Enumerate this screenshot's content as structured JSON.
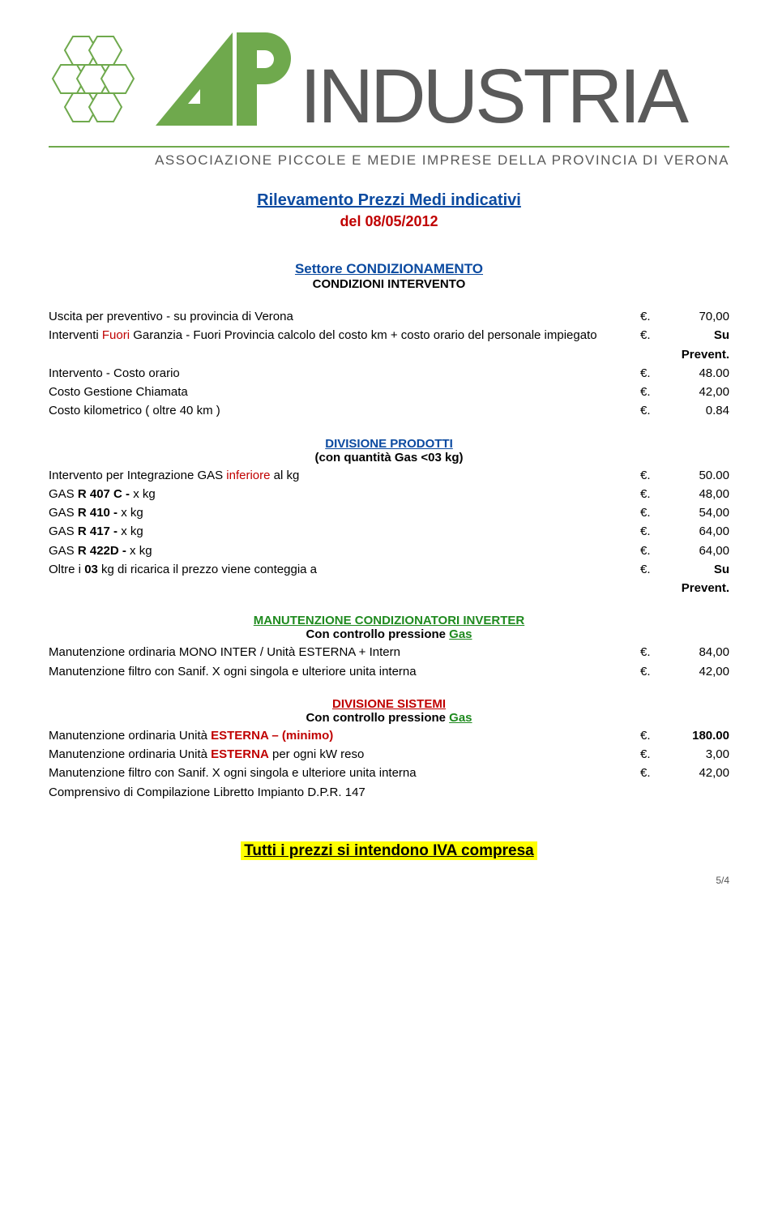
{
  "logo": {
    "industria_text": "INDUSTRIA",
    "subtitle": "ASSOCIAZIONE PICCOLE E MEDIE IMPRESE DELLA PROVINCIA DI VERONA",
    "green": "#6fa94d",
    "green_light": "#9fc87f",
    "gray": "#5a5a5a"
  },
  "title": {
    "line1": "Rilevamento Prezzi Medi indicativi",
    "line2": "del 08/05/2012"
  },
  "sector": {
    "main": "Settore CONDIZIONAMENTO",
    "sub": "CONDIZIONI INTERVENTO"
  },
  "condizioni": [
    {
      "label": "Uscita per preventivo  -  su provincia di Verona",
      "currency": "€.",
      "value": "70,00"
    },
    {
      "label_parts": [
        "Interventi ",
        {
          "text": "Fuori",
          "color": "#c00000"
        },
        " Garanzia - Fuori Provincia calcolo del costo km + costo orario del personale impiegato"
      ],
      "currency": "€.",
      "value": "Su Prevent.",
      "value_bold": true
    },
    {
      "label": "Intervento - Costo orario",
      "currency": "€.",
      "value": "48.00"
    },
    {
      "label": "Costo Gestione Chiamata",
      "currency": "€.",
      "value": "42,00"
    },
    {
      "label": "Costo kilometrico ( oltre 40 km )",
      "currency": "€.",
      "value": "0.84"
    }
  ],
  "divisione_prodotti": {
    "heading": "DIVISIONE PRODOTTI",
    "sub": "(con quantità Gas <03 kg)",
    "rows": [
      {
        "label_parts": [
          "Intervento per Integrazione GAS ",
          {
            "text": "inferiore",
            "color": "#c00000"
          },
          " al kg"
        ],
        "currency": "€.",
        "value": "50.00"
      },
      {
        "label_parts": [
          "GAS  ",
          {
            "text": "R 407 C  -",
            "bold": true
          },
          " x kg"
        ],
        "currency": "€.",
        "value": "48,00"
      },
      {
        "label_parts": [
          "GAS  ",
          {
            "text": "R 410  -",
            "bold": true
          },
          " x kg"
        ],
        "currency": "€.",
        "value": "54,00"
      },
      {
        "label_parts": [
          "GAS  ",
          {
            "text": "R 417  -",
            "bold": true
          },
          " x kg"
        ],
        "currency": "€.",
        "value": "64,00"
      },
      {
        "label_parts": [
          "GAS  ",
          {
            "text": "R 422D  -",
            "bold": true
          },
          " x kg"
        ],
        "currency": "€.",
        "value": "64,00"
      },
      {
        "label_parts": [
          "Oltre i ",
          {
            "text": "03",
            "bold": true
          },
          " kg di ricarica il prezzo viene conteggia a"
        ],
        "currency": "€.",
        "value": "Su Prevent.",
        "value_bold": true
      }
    ]
  },
  "manutenzione_inverter": {
    "heading": "MANUTENZIONE CONDIZIONATORI INVERTER",
    "sub_prefix": "Con controllo pressione ",
    "sub_gas": "Gas",
    "rows": [
      {
        "label": "Manutenzione ordinaria MONO INTER / Unità ESTERNA + Intern",
        "currency": "€.",
        "value": "84,00"
      },
      {
        "label": "Manutenzione filtro con Sanif. X ogni singola e ulteriore unita interna",
        "currency": "€.",
        "value": "42,00"
      }
    ]
  },
  "divisione_sistemi": {
    "heading": "DIVISIONE SISTEMI",
    "sub_prefix": "Con controllo pressione ",
    "sub_gas": "Gas",
    "rows": [
      {
        "label_parts": [
          "Manutenzione ordinaria Unità ",
          {
            "text": "ESTERNA – (minimo)",
            "color": "#c00000",
            "bold": true
          }
        ],
        "currency": "€.",
        "value": "180.00",
        "value_bold": true
      },
      {
        "label_parts": [
          "Manutenzione ordinaria Unità ",
          {
            "text": "ESTERNA",
            "color": "#c00000",
            "bold": true
          },
          " per ogni kW reso"
        ],
        "currency": "€.",
        "value": "3,00"
      },
      {
        "label": "Manutenzione filtro con Sanif. X ogni singola e ulteriore unita interna",
        "currency": "€.",
        "value": "42,00"
      },
      {
        "label": "Comprensivo di Compilazione Libretto Impianto D.P.R. 147",
        "currency": "",
        "value": ""
      }
    ]
  },
  "footer": {
    "highlight": "Tutti i prezzi si intendono IVA compresa",
    "page": "5/4"
  },
  "colors": {
    "blue": "#0b4aa0",
    "red": "#c00000",
    "green": "#1f8a1f",
    "highlight_bg": "#ffff00"
  }
}
